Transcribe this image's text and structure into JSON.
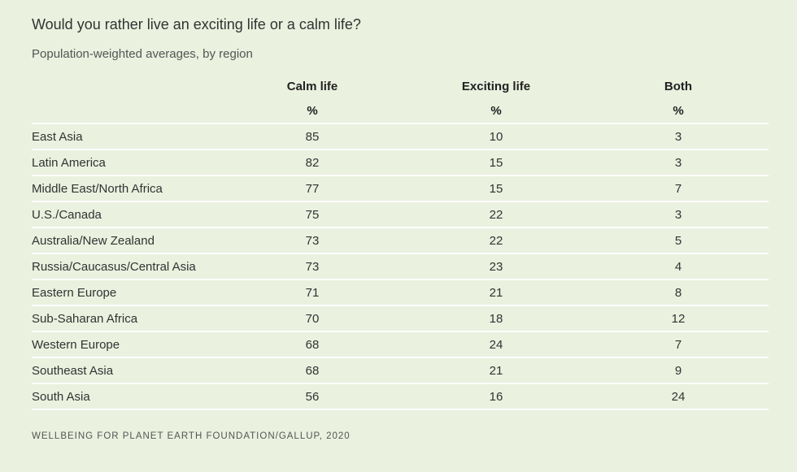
{
  "title": "Would you rather live an exciting life or a calm life?",
  "subtitle": "Population-weighted averages, by region",
  "columns": [
    "Calm life",
    "Exciting life",
    "Both"
  ],
  "unit": "%",
  "rows": [
    {
      "region": "East Asia",
      "calm": "85",
      "exciting": "10",
      "both": "3"
    },
    {
      "region": "Latin America",
      "calm": "82",
      "exciting": "15",
      "both": "3"
    },
    {
      "region": "Middle East/North Africa",
      "calm": "77",
      "exciting": "15",
      "both": "7"
    },
    {
      "region": "U.S./Canada",
      "calm": "75",
      "exciting": "22",
      "both": "3"
    },
    {
      "region": "Australia/New Zealand",
      "calm": "73",
      "exciting": "22",
      "both": "5"
    },
    {
      "region": "Russia/Caucasus/Central Asia",
      "calm": "73",
      "exciting": "23",
      "both": "4"
    },
    {
      "region": "Eastern Europe",
      "calm": "71",
      "exciting": "21",
      "both": "8"
    },
    {
      "region": "Sub-Saharan Africa",
      "calm": "70",
      "exciting": "18",
      "both": "12"
    },
    {
      "region": "Western Europe",
      "calm": "68",
      "exciting": "24",
      "both": "7"
    },
    {
      "region": "Southeast Asia",
      "calm": "68",
      "exciting": "21",
      "both": "9"
    },
    {
      "region": "South Asia",
      "calm": "56",
      "exciting": "16",
      "both": "24"
    }
  ],
  "source": "WELLBEING FOR PLANET EARTH FOUNDATION/GALLUP, 2020",
  "colors": {
    "background": "#eaf1df",
    "divider": "#ffffff",
    "text": "#333333"
  }
}
